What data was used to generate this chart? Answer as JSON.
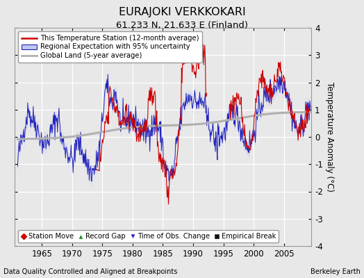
{
  "title": "EURAJOKI VERKKOKARI",
  "subtitle": "61.233 N, 21.633 E (Finland)",
  "ylabel": "Temperature Anomaly (°C)",
  "xlabel_years": [
    1965,
    1970,
    1975,
    1980,
    1985,
    1990,
    1995,
    2000,
    2005
  ],
  "ylim": [
    -4,
    4
  ],
  "xlim": [
    1960.5,
    2009.5
  ],
  "yticks": [
    -4,
    -3,
    -2,
    -1,
    0,
    1,
    2,
    3,
    4
  ],
  "footer_left": "Data Quality Controlled and Aligned at Breakpoints",
  "footer_right": "Berkeley Earth",
  "bg_color": "#e8e8e8",
  "plot_bg_color": "#e8e8e8",
  "legend1_labels": [
    "This Temperature Station (12-month average)",
    "Regional Expectation with 95% uncertainty",
    "Global Land (5-year average)"
  ],
  "legend2_labels": [
    "Station Move",
    "Record Gap",
    "Time of Obs. Change",
    "Empirical Break"
  ],
  "station_color": "#cc0000",
  "regional_color": "#2222bb",
  "regional_fill_color": "#c0c8ee",
  "global_color": "#b0b0b0",
  "grid_color": "#d0d0d0"
}
